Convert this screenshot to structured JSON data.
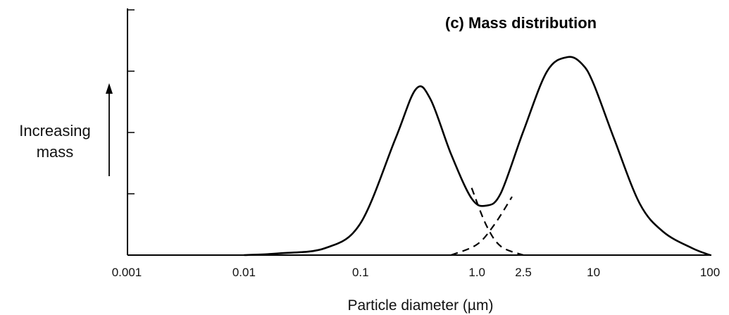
{
  "chart_data": {
    "type": "line",
    "title": "(c) Mass distribution",
    "ylabel_lines": [
      "Increasing",
      "mass"
    ],
    "xlabel": "Particle diameter (µm)",
    "x_scale": "log",
    "xlim": [
      0.001,
      100
    ],
    "ylim": [
      0,
      1
    ],
    "y_ticks": [
      0,
      0.33,
      0.67,
      1.0
    ],
    "x_tick_labels": [
      {
        "value": 0.001,
        "label": "0.001"
      },
      {
        "value": 0.01,
        "label": "0.01"
      },
      {
        "value": 0.1,
        "label": "0.1"
      },
      {
        "value": 1.0,
        "label": "1.0"
      },
      {
        "value": 2.5,
        "label": "2.5"
      },
      {
        "value": 10,
        "label": "10"
      },
      {
        "value": 100,
        "label": "100"
      }
    ],
    "series": [
      {
        "style": "solid",
        "x": [
          0.01,
          0.02,
          0.05,
          0.1,
          0.2,
          0.3,
          0.4,
          0.6,
          0.9,
          1.2,
          1.6,
          2.5,
          4,
          6,
          8,
          10,
          15,
          25,
          40,
          70,
          100
        ],
        "y": [
          0.0,
          0.01,
          0.04,
          0.18,
          0.66,
          0.94,
          0.88,
          0.57,
          0.32,
          0.28,
          0.35,
          0.7,
          1.04,
          1.12,
          1.08,
          0.97,
          0.66,
          0.29,
          0.13,
          0.04,
          0.0
        ]
      },
      {
        "style": "dashed",
        "x": [
          0.9,
          1.2,
          1.6,
          2.5
        ],
        "y": [
          0.38,
          0.17,
          0.05,
          0.0
        ]
      },
      {
        "style": "dashed",
        "x": [
          0.6,
          1.0,
          1.4,
          2.0
        ],
        "y": [
          0.0,
          0.06,
          0.17,
          0.33
        ]
      }
    ],
    "grid": false,
    "legend": "none"
  }
}
